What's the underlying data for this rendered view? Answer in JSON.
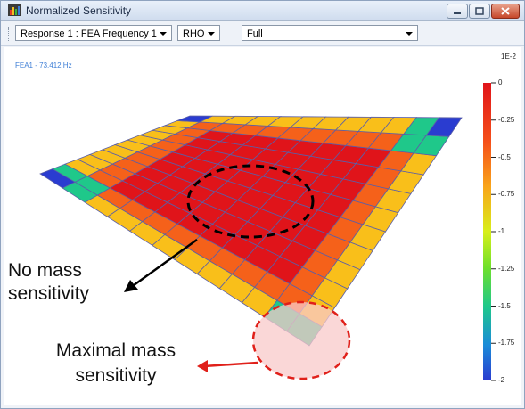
{
  "window": {
    "title": "Normalized Sensitivity"
  },
  "toolbar": {
    "response_combo": "Response 1 : FEA Frequency 1",
    "param_combo": "RHO",
    "display_combo": "Full"
  },
  "viewport": {
    "fea_label": "FEA1 - 73.412 Hz",
    "annotation_no_mass": [
      "No mass",
      "sensitivity"
    ],
    "annotation_maximal": [
      "Maximal mass",
      "sensitivity"
    ]
  },
  "colorbar": {
    "unit": "1E-2",
    "ticks": [
      "0",
      "-0.25",
      "-0.5",
      "-0.75",
      "-1",
      "-1.25",
      "-1.5",
      "-1.75",
      "-2"
    ],
    "min": -2,
    "max": 0,
    "gradient": [
      "#e0141a",
      "#f5611a",
      "#f9bf1a",
      "#d8ef1a",
      "#6fe02a",
      "#1fc88a",
      "#1aa4d8",
      "#2a3cd0"
    ]
  },
  "colors": {
    "red": "#e01f1f",
    "blue_highlight": "#2a3cd0",
    "callout_red": "#e0201a",
    "ellipse_fill": "#f8c9c9"
  }
}
